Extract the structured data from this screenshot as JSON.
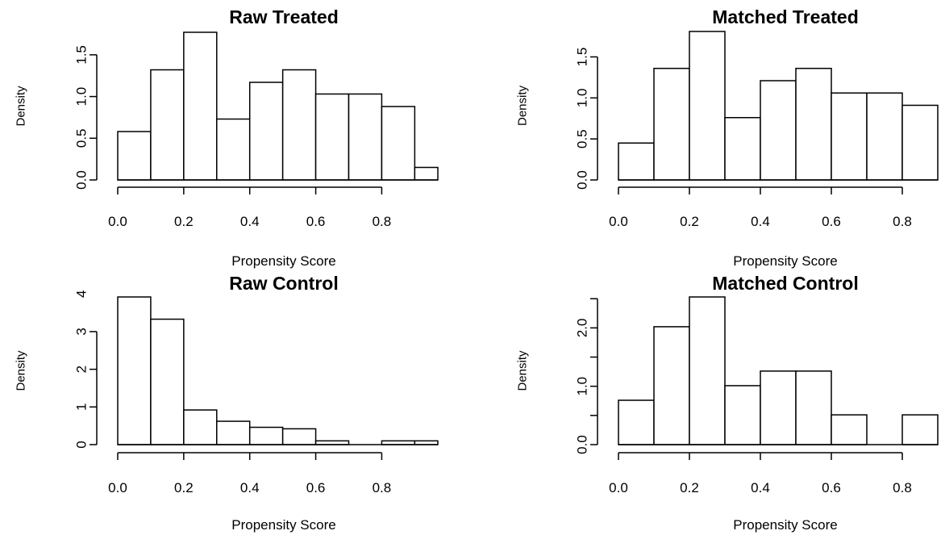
{
  "chart_data": [
    {
      "type": "bar",
      "title": "Raw Treated",
      "xlabel": "Propensity Score",
      "ylabel": "Density",
      "bin_edges": [
        0.0,
        0.1,
        0.2,
        0.3,
        0.4,
        0.5,
        0.6,
        0.7,
        0.8,
        0.9,
        1.0
      ],
      "values": [
        0.58,
        1.32,
        1.77,
        0.73,
        1.17,
        1.32,
        1.03,
        1.03,
        0.88,
        0.15
      ],
      "xlim": [
        0.0,
        0.97
      ],
      "ylim": [
        0.0,
        1.77
      ],
      "xticks": [
        "0.0",
        "0.2",
        "0.4",
        "0.6",
        "0.8"
      ],
      "xtick_values": [
        0.0,
        0.2,
        0.4,
        0.6,
        0.8
      ],
      "yticks": [
        "0.0",
        "0.5",
        "1.0",
        "1.5"
      ],
      "ytick_values": [
        0.0,
        0.5,
        1.0,
        1.5
      ]
    },
    {
      "type": "bar",
      "title": "Matched Treated",
      "xlabel": "Propensity Score",
      "ylabel": "Density",
      "bin_edges": [
        0.0,
        0.1,
        0.2,
        0.3,
        0.4,
        0.5,
        0.6,
        0.7,
        0.8,
        0.9
      ],
      "values": [
        0.45,
        1.36,
        1.81,
        0.76,
        1.21,
        1.36,
        1.06,
        1.06,
        0.91
      ],
      "xlim": [
        0.0,
        0.9
      ],
      "ylim": [
        0.0,
        1.81
      ],
      "xticks": [
        "0.0",
        "0.2",
        "0.4",
        "0.6",
        "0.8"
      ],
      "xtick_values": [
        0.0,
        0.2,
        0.4,
        0.6,
        0.8
      ],
      "yticks": [
        "0.0",
        "0.5",
        "1.0",
        "1.5"
      ],
      "ytick_values": [
        0.0,
        0.5,
        1.0,
        1.5
      ]
    },
    {
      "type": "bar",
      "title": "Raw Control",
      "xlabel": "Propensity Score",
      "ylabel": "Density",
      "bin_edges": [
        0.0,
        0.1,
        0.2,
        0.3,
        0.4,
        0.5,
        0.6,
        0.7,
        0.8,
        0.9,
        1.0
      ],
      "values": [
        3.92,
        3.33,
        0.92,
        0.62,
        0.46,
        0.42,
        0.1,
        0.0,
        0.1,
        0.1
      ],
      "xlim": [
        0.0,
        0.97
      ],
      "ylim": [
        0.0,
        3.92
      ],
      "xticks": [
        "0.0",
        "0.2",
        "0.4",
        "0.6",
        "0.8"
      ],
      "xtick_values": [
        0.0,
        0.2,
        0.4,
        0.6,
        0.8
      ],
      "yticks": [
        "0",
        "1",
        "2",
        "3",
        "4"
      ],
      "ytick_values": [
        0,
        1,
        2,
        3,
        4
      ]
    },
    {
      "type": "bar",
      "title": "Matched Control",
      "xlabel": "Propensity Score",
      "ylabel": "Density",
      "bin_edges": [
        0.0,
        0.1,
        0.2,
        0.3,
        0.4,
        0.5,
        0.6,
        0.7,
        0.8,
        0.9
      ],
      "values": [
        0.76,
        2.02,
        2.53,
        1.01,
        1.26,
        1.26,
        0.51,
        0.0,
        0.51
      ],
      "xlim": [
        0.0,
        0.9
      ],
      "ylim": [
        0.0,
        2.53
      ],
      "xticks": [
        "0.0",
        "0.2",
        "0.4",
        "0.6",
        "0.8"
      ],
      "xtick_values": [
        0.0,
        0.2,
        0.4,
        0.6,
        0.8
      ],
      "yticks": [
        "0.0",
        "1.0",
        "2.0"
      ],
      "ytick_values": [
        0.0,
        1.0,
        2.0
      ],
      "minor_ytick_values": [
        0.5,
        1.5,
        2.5
      ]
    }
  ]
}
